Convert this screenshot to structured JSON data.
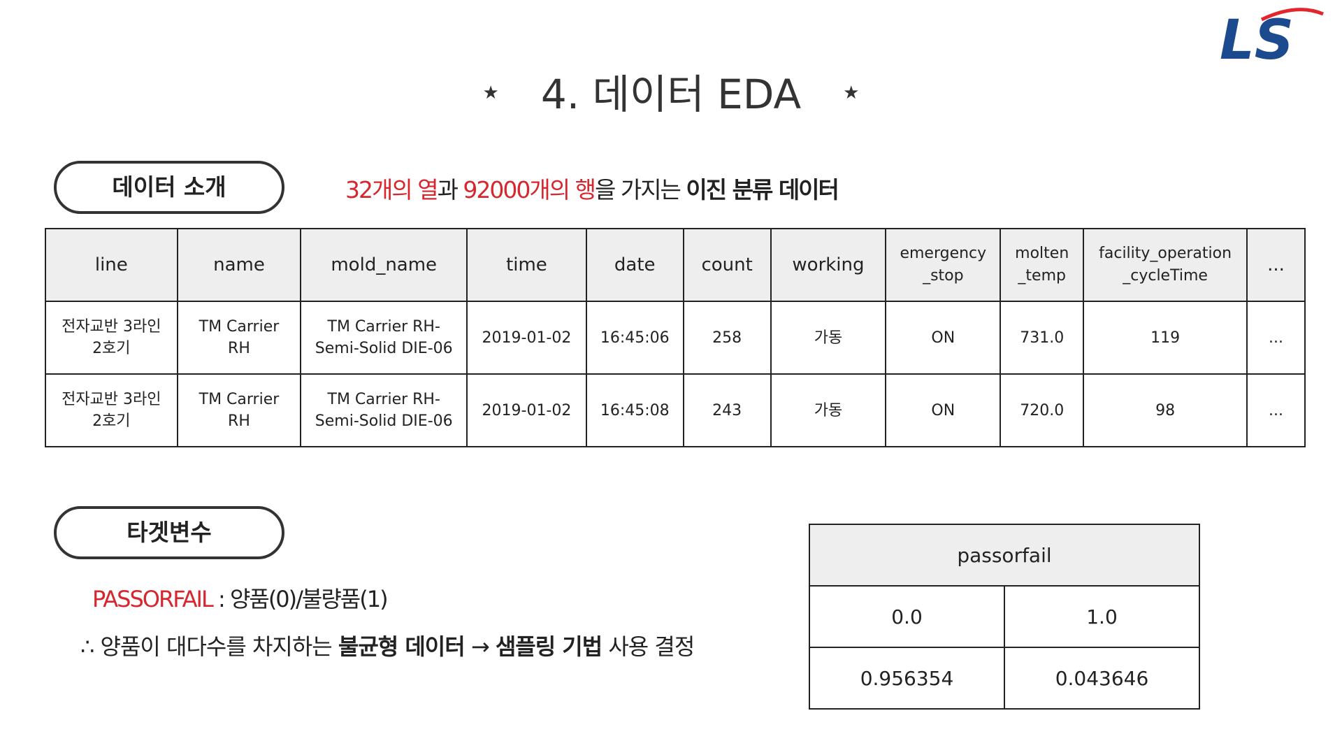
{
  "title": {
    "text": "4. 데이터 EDA",
    "star": "★"
  },
  "logo": {
    "text": "LS",
    "colors": {
      "primary": "#1b4a8e",
      "swoosh": "#e3262c"
    }
  },
  "intro": {
    "pill_label": "데이터 소개",
    "columns_count": "32개의 열",
    "conj": "과 ",
    "rows_count": "92000개의 행",
    "mid": "을 가지는 ",
    "data_type": "이진 분류 데이터"
  },
  "data_table": {
    "headers": [
      "line",
      "name",
      "mold_name",
      "time",
      "date",
      "count",
      "working",
      [
        "emergency",
        "_stop"
      ],
      [
        "molten",
        "_temp"
      ],
      [
        "facility_operation",
        "_cycleTime"
      ],
      "..."
    ],
    "rows": [
      [
        [
          "전자교반 3라인",
          "2호기"
        ],
        [
          "TM Carrier",
          "RH"
        ],
        [
          "TM Carrier RH-",
          "Semi-Solid DIE-06"
        ],
        "2019-01-02",
        "16:45:06",
        "258",
        "가동",
        "ON",
        "731.0",
        "119",
        "..."
      ],
      [
        [
          "전자교반 3라인",
          "2호기"
        ],
        [
          "TM Carrier",
          "RH"
        ],
        [
          "TM Carrier RH-",
          "Semi-Solid DIE-06"
        ],
        "2019-01-02",
        "16:45:08",
        "243",
        "가동",
        "ON",
        "720.0",
        "98",
        "..."
      ]
    ]
  },
  "target": {
    "pill_label": "타겟변수",
    "var_name": "PASSORFAIL",
    "var_colon": " : ",
    "var_desc": "양품(0)/불량품(1)",
    "conclusion_prefix": "∴ 양품이 대다수를 차지하는 ",
    "conclusion_bold1": "불균형 데이터",
    "arrow": " → ",
    "conclusion_bold2": "샘플링 기법",
    "conclusion_suffix": " 사용 결정"
  },
  "pf_table": {
    "header": "passorfail",
    "row1": [
      "0.0",
      "1.0"
    ],
    "row2": [
      "0.956354",
      "0.043646"
    ]
  }
}
